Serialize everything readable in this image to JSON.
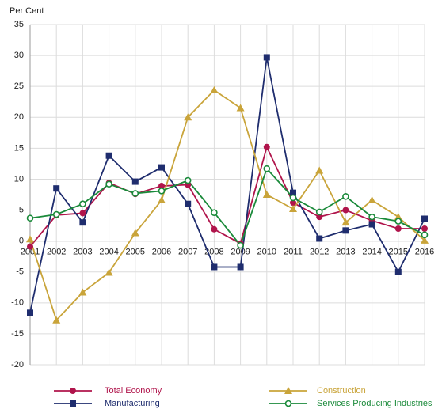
{
  "chart_data": {
    "type": "line",
    "y_label": "Per Cent",
    "categories": [
      "2001",
      "2002",
      "2003",
      "2004",
      "2005",
      "2006",
      "2007",
      "2008",
      "2009",
      "2010",
      "2011",
      "2012",
      "2013",
      "2014",
      "2015",
      "2016"
    ],
    "series": [
      {
        "name": "Total Economy",
        "color": "#b0144b",
        "marker": "circle",
        "values": [
          -0.9,
          4.2,
          4.5,
          9.4,
          7.6,
          8.9,
          9.1,
          1.9,
          -0.4,
          15.2,
          6.2,
          3.9,
          5.0,
          3.3,
          2.0,
          2.0
        ]
      },
      {
        "name": "Manufacturing",
        "color": "#1f2d6e",
        "marker": "square",
        "values": [
          -11.6,
          8.5,
          3.0,
          13.8,
          9.6,
          11.9,
          6.0,
          -4.2,
          -4.2,
          29.7,
          7.8,
          0.4,
          1.7,
          2.7,
          -5.0,
          3.6
        ]
      },
      {
        "name": "Construction",
        "color": "#c9a43a",
        "marker": "triangle",
        "values": [
          0.3,
          -12.8,
          -8.3,
          -5.1,
          1.3,
          6.6,
          20.0,
          24.4,
          21.5,
          7.5,
          5.2,
          11.4,
          3.0,
          6.6,
          3.9,
          0.1
        ]
      },
      {
        "name": "Services Producing Industries",
        "color": "#1a8a3a",
        "marker": "open-circle",
        "values": [
          3.7,
          4.3,
          6.0,
          9.2,
          7.7,
          8.1,
          9.8,
          4.6,
          -0.7,
          11.7,
          7.0,
          4.7,
          7.2,
          3.9,
          3.2,
          1.0
        ]
      }
    ],
    "ylim": [
      -20,
      35
    ],
    "yticks": [
      -20,
      -15,
      -10,
      -5,
      0,
      5,
      10,
      15,
      20,
      25,
      30,
      35
    ],
    "grid": true
  }
}
